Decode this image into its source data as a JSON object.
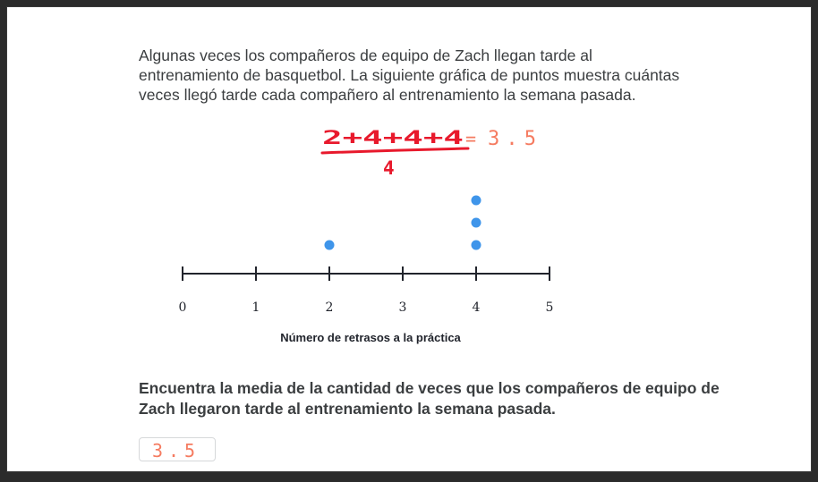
{
  "problem": {
    "intro": "Algunas veces los compañeros de equipo de Zach llegan tarde al entrenamiento de basquetbol. La siguiente gráfica de puntos muestra cuántas veces llegó tarde cada compañero al entrenamiento la semana pasada.",
    "question": "Encuentra la media de la cantidad de veces que los compañeros de equipo de Zach llegaron tarde al entrenamiento la semana pasada."
  },
  "work": {
    "numerator": "2+4+4+4",
    "denominator": "4",
    "equals": "=",
    "result": "3.5",
    "ink_red": "#e8192c",
    "ink_orange": "#f57b60"
  },
  "answer": {
    "value": "3.5"
  },
  "chart_data": {
    "type": "scatter",
    "xlabel": "Número de retrasos a la práctica",
    "ticks": [
      0,
      1,
      2,
      3,
      4,
      5
    ],
    "xlim": [
      0,
      5
    ],
    "points": [
      {
        "x": 2,
        "count": 1
      },
      {
        "x": 4,
        "count": 3
      }
    ],
    "dot_color": "#3f95ea"
  }
}
